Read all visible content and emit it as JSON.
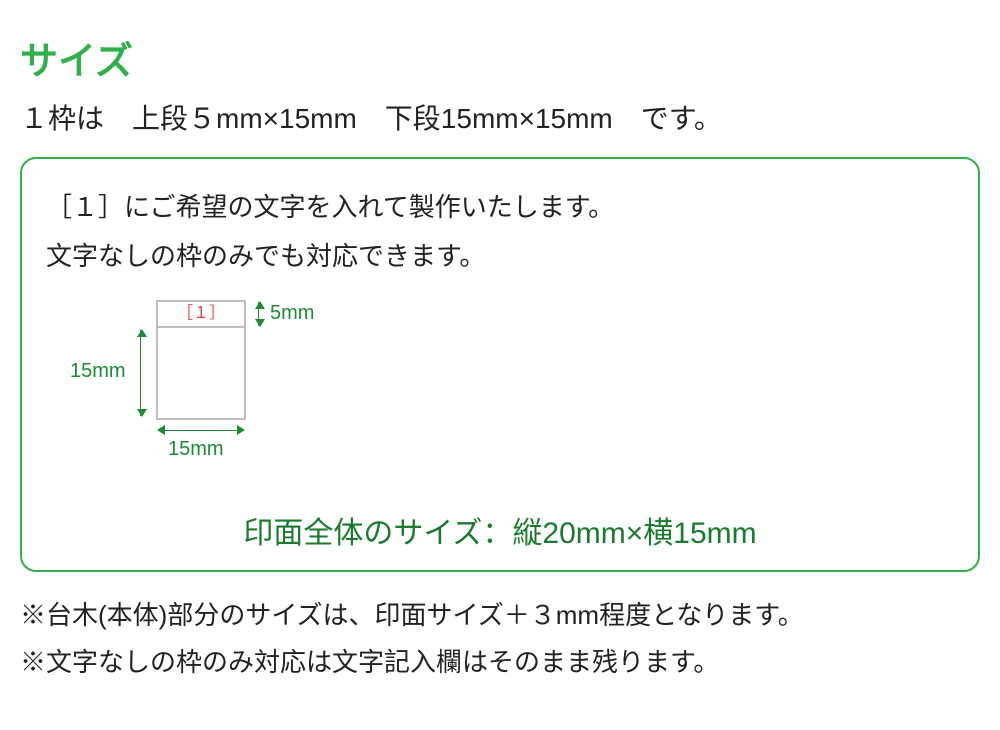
{
  "colors": {
    "brand_green": "#2fb04a",
    "dark_green": "#1a7a2e",
    "dim_green": "#1e8a37",
    "red": "#d94545",
    "border_gray": "#bdbdbd",
    "text": "#222222"
  },
  "title": "サイズ",
  "subtitle": "１枠は　上段５mm×15mm　下段15mm×15mm　です。",
  "panel": {
    "line1": "［１］にご希望の文字を入れて製作いたします。",
    "line2": "文字なしの枠のみでも対応できます。",
    "cell_label": "［１］",
    "dim_top": "5mm",
    "dim_left": "15mm",
    "dim_bottom": "15mm",
    "overall_size": "印面全体のサイズ：縦20mm×横15mm"
  },
  "notes": {
    "n1": "※台木(本体)部分のサイズは、印面サイズ＋３mm程度となります。",
    "n2": "※文字なしの枠のみ対応は文字記入欄はそのまま残ります。"
  }
}
